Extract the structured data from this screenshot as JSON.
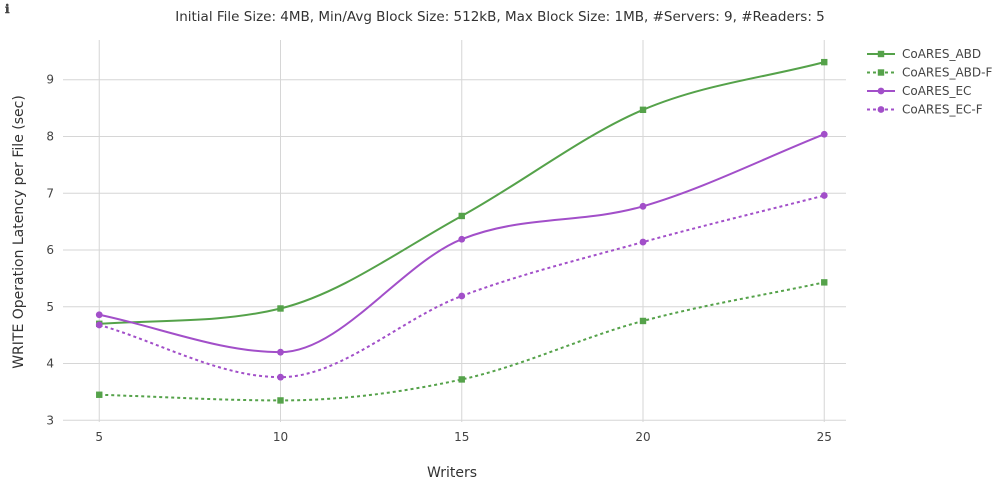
{
  "info_glyph": "ℹ",
  "chart_data": {
    "type": "line",
    "title": "Initial File Size: 4MB, Min/Avg Block Size: 512kB, Max Block Size: 1MB, #Servers: 9, #Readers: 5",
    "xlabel": "Writers",
    "ylabel": "WRITE Operation Latency per File (sec)",
    "x": [
      5,
      10,
      15,
      20,
      25
    ],
    "xlim": [
      4,
      25.6
    ],
    "ylim": [
      2.97,
      9.7
    ],
    "xticks": [
      5,
      10,
      15,
      20,
      25
    ],
    "yticks": [
      3,
      4,
      5,
      6,
      7,
      8,
      9
    ],
    "grid": true,
    "legend_position": "top-right",
    "series": [
      {
        "name": "CoARES_ABD",
        "values": [
          4.7,
          4.97,
          6.6,
          8.47,
          9.31
        ],
        "color": "#55a24a",
        "marker": "square",
        "dash": "solid"
      },
      {
        "name": "CoARES_ABD-F",
        "values": [
          3.45,
          3.35,
          3.72,
          4.75,
          5.43
        ],
        "color": "#55a24a",
        "marker": "square",
        "dash": "dot"
      },
      {
        "name": "CoARES_EC",
        "values": [
          4.86,
          4.2,
          6.19,
          6.77,
          8.04
        ],
        "color": "#a24fc9",
        "marker": "circle",
        "dash": "solid"
      },
      {
        "name": "CoARES_EC-F",
        "values": [
          4.68,
          3.76,
          5.19,
          6.14,
          6.96
        ],
        "color": "#a24fc9",
        "marker": "circle",
        "dash": "dot"
      }
    ]
  }
}
